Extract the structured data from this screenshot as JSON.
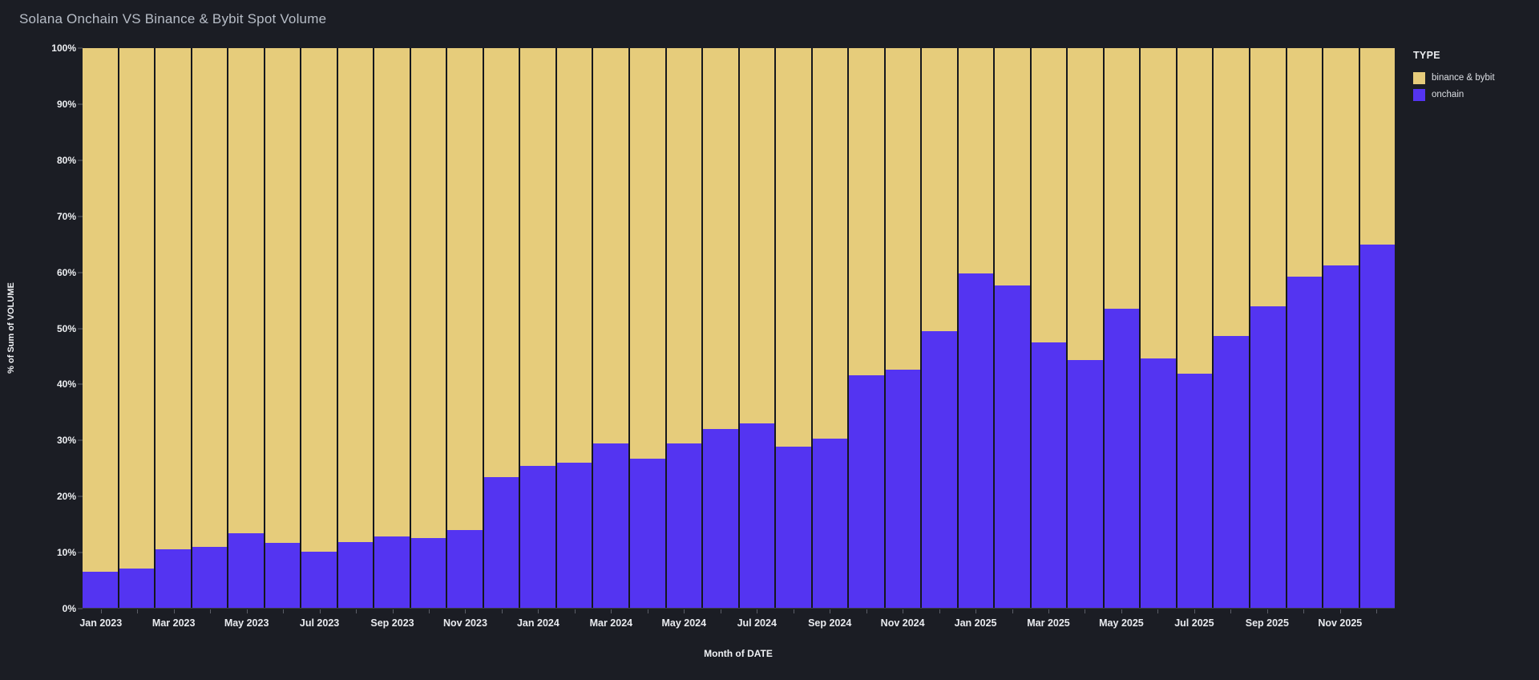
{
  "header": {
    "title": "Solana Onchain VS Binance & Bybit Spot Volume"
  },
  "chart_data": {
    "type": "bar",
    "stacked": true,
    "percent_of_total": true,
    "title": "Solana Onchain VS Binance & Bybit Spot Volume",
    "xlabel": "Month of DATE",
    "ylabel": "% of Sum of VOLUME",
    "ylim": [
      0,
      100
    ],
    "ytick_step": 10,
    "ytick_labels": [
      "0%",
      "10%",
      "20%",
      "30%",
      "40%",
      "50%",
      "60%",
      "70%",
      "80%",
      "90%",
      "100%"
    ],
    "grid": false,
    "categories": [
      "Jan 2023",
      "Feb 2023",
      "Mar 2023",
      "Apr 2023",
      "May 2023",
      "Jun 2023",
      "Jul 2023",
      "Aug 2023",
      "Sep 2023",
      "Oct 2023",
      "Nov 2023",
      "Dec 2023",
      "Jan 2024",
      "Feb 2024",
      "Mar 2024",
      "Apr 2024",
      "May 2024",
      "Jun 2024",
      "Jul 2024",
      "Aug 2024",
      "Sep 2024",
      "Oct 2024",
      "Nov 2024",
      "Dec 2024",
      "Jan 2025",
      "Feb 2025",
      "Mar 2025",
      "Apr 2025",
      "May 2025",
      "Jun 2025",
      "Jul 2025",
      "Aug 2025",
      "Sep 2025",
      "Oct 2025",
      "Nov 2025",
      "Dec 2025"
    ],
    "xtick_labels_visible": [
      "Jan 2023",
      "Mar 2023",
      "May 2023",
      "Jul 2023",
      "Sep 2023",
      "Nov 2023",
      "Jan 2024",
      "Mar 2024",
      "May 2024",
      "Jul 2024",
      "Sep 2024",
      "Nov 2024",
      "Jan 2025",
      "Mar 2025",
      "May 2025",
      "Jul 2025",
      "Sep 2025",
      "Nov 2025"
    ],
    "xtick_label_every": 2,
    "series": [
      {
        "name": "binance & bybit",
        "color": "#e6cc7b",
        "values": [
          93.5,
          93.0,
          89.5,
          89.1,
          86.7,
          88.4,
          89.9,
          88.3,
          87.3,
          87.6,
          86.1,
          76.7,
          74.6,
          74.1,
          70.6,
          73.3,
          70.6,
          68.0,
          67.0,
          71.2,
          69.7,
          58.5,
          57.5,
          50.6,
          40.2,
          42.4,
          52.6,
          55.7,
          46.5,
          55.4,
          58.2,
          51.4,
          46.1,
          40.9,
          38.8,
          35.1
        ]
      },
      {
        "name": "onchain",
        "color": "#5434f1",
        "values": [
          6.5,
          7.0,
          10.5,
          10.9,
          13.3,
          11.6,
          10.1,
          11.7,
          12.7,
          12.4,
          13.9,
          23.3,
          25.4,
          25.9,
          29.4,
          26.7,
          29.4,
          32.0,
          33.0,
          28.8,
          30.3,
          41.5,
          42.5,
          49.4,
          59.8,
          57.6,
          47.4,
          44.3,
          53.5,
          44.6,
          41.8,
          48.6,
          53.9,
          59.1,
          61.2,
          64.9
        ]
      }
    ],
    "legend": {
      "title": "TYPE",
      "position": "right",
      "items": [
        "binance & bybit",
        "onchain"
      ]
    },
    "colors": {
      "background": "#1b1d24",
      "bar_separator": "#15171d",
      "axis_text": "#edeff2",
      "title_text": "#b7bdc7",
      "tick_mark": "#5b5e67"
    }
  }
}
